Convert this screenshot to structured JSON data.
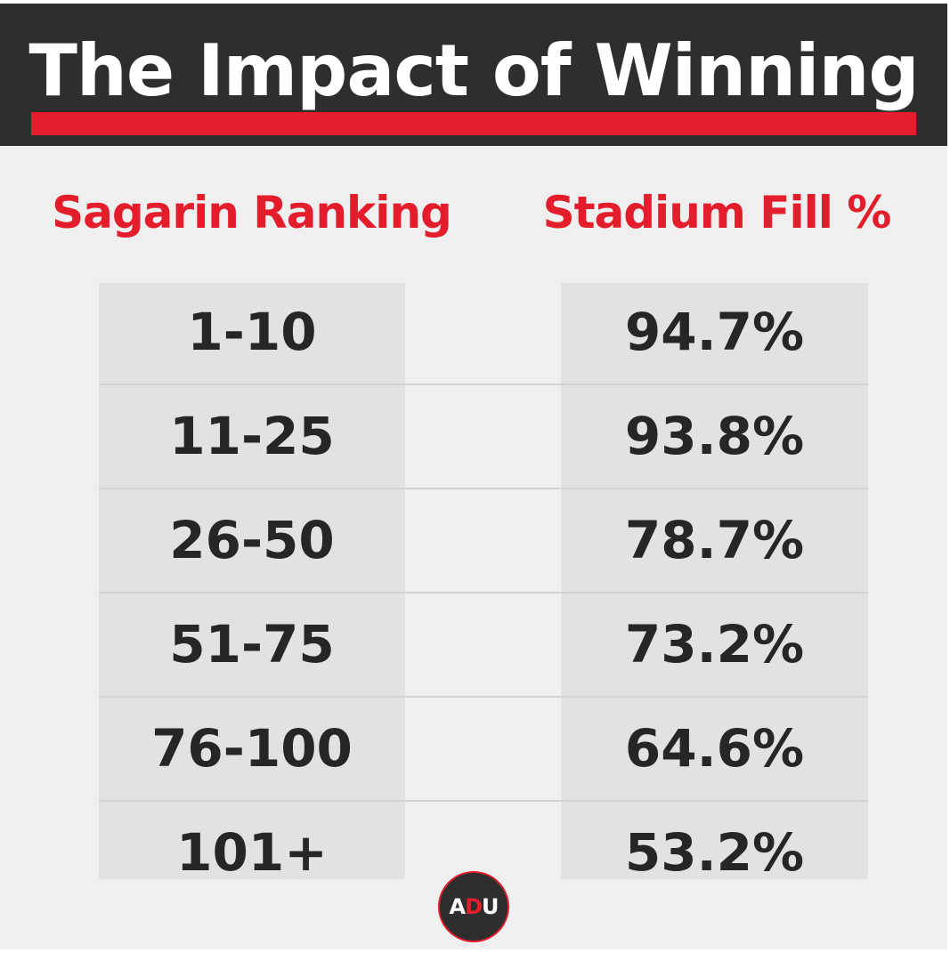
{
  "title": "The Impact of Winning",
  "colors": {
    "header_background": "#2e2e2e",
    "accent_red": "#e31d2b",
    "page_background": "#efefef",
    "cell_background": "#e2e2e2",
    "value_text": "#262626"
  },
  "chart_data": {
    "type": "table",
    "title": "The Impact of Winning",
    "columns": [
      "Sagarin Ranking",
      "Stadium Fill %"
    ],
    "rows": [
      [
        "1-10",
        "94.7%"
      ],
      [
        "11-25",
        "93.8%"
      ],
      [
        "26-50",
        "78.7%"
      ],
      [
        "51-75",
        "73.2%"
      ],
      [
        "76-100",
        "64.6%"
      ],
      [
        "101+",
        "53.2%"
      ]
    ]
  },
  "logo": {
    "text": "ADU",
    "parts": [
      "A",
      "D",
      "U"
    ]
  }
}
